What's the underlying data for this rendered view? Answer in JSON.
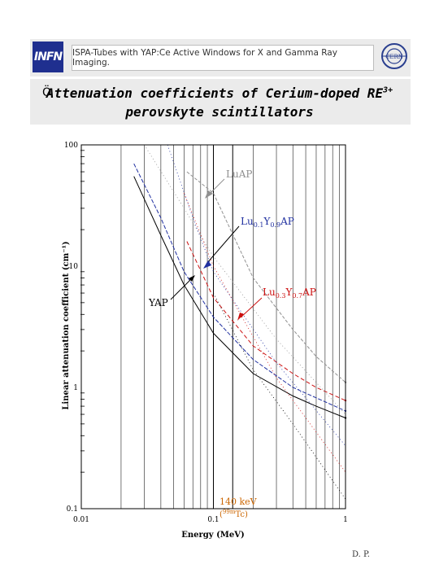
{
  "header": {
    "logo_left_text": "INFN",
    "banner_text": "ISPA-Tubes with YAP:Ce Active Windows for X and Gamma Ray Imaging.",
    "logo_right_text": "CERN",
    "logo_left_icon": "infn-logo-icon",
    "logo_right_icon": "cern-logo-icon"
  },
  "title": {
    "bullet": "Ö",
    "line1": "Attenuation coefficients of Cerium-doped RE",
    "line1_sup": "3+",
    "line2": "perovskyte scintillators"
  },
  "chart_data": {
    "type": "line",
    "xscale": "log",
    "yscale": "log",
    "xlim": [
      0.01,
      1
    ],
    "ylim": [
      0.1,
      100
    ],
    "xlabel": "Energy (MeV)",
    "ylabel": "Linear attenuation coefficient (cm⁻¹)",
    "x_ticks": [
      "0.01",
      "0.1",
      "1"
    ],
    "y_ticks": [
      "100",
      "10",
      "1",
      "0.1"
    ],
    "grid": true,
    "series": [
      {
        "name": "LuAP",
        "color": "#909090",
        "x": [
          0.063,
          0.1,
          0.2,
          0.4,
          0.6,
          1.0
        ],
        "y": [
          60,
          40,
          8,
          3,
          1.8,
          1.1
        ]
      },
      {
        "name": "Lu0.1Y0.9AP",
        "color": "#2030a0",
        "x": [
          0.025,
          0.04,
          0.06,
          0.1,
          0.2,
          0.4,
          0.6,
          1.0
        ],
        "y": [
          70,
          25,
          9,
          3.8,
          1.7,
          1.0,
          0.82,
          0.64
        ]
      },
      {
        "name": "Lu0.3Y0.7AP",
        "color": "#cc1010",
        "x": [
          0.063,
          0.1,
          0.2,
          0.4,
          0.6,
          1.0
        ],
        "y": [
          16,
          5.5,
          2.2,
          1.3,
          1.0,
          0.78
        ]
      },
      {
        "name": "YAP",
        "color": "#000000",
        "x": [
          0.025,
          0.04,
          0.06,
          0.1,
          0.2,
          0.4,
          0.6,
          1.0
        ],
        "y": [
          55,
          18,
          7,
          2.8,
          1.3,
          0.85,
          0.7,
          0.56
        ]
      }
    ],
    "annotations": [
      {
        "label": "LuAP",
        "color": "#909090"
      },
      {
        "label_main": "Lu",
        "sub1": "0.1",
        "mid": "Y",
        "sub2": "0.9",
        "tail": "AP",
        "color": "#2030a0"
      },
      {
        "label_main": "Lu",
        "sub1": "0.3",
        "mid": "Y",
        "sub2": "0.7",
        "tail": "AP",
        "color": "#cc1010"
      },
      {
        "label": "YAP",
        "color": "#000000"
      },
      {
        "label": "140 keV",
        "sub_label_pre": "(",
        "sub_label_sup": "99m",
        "sub_label_post": "Tc)",
        "color": "#cc6600"
      }
    ]
  },
  "footer": {
    "signature": "D. P."
  }
}
